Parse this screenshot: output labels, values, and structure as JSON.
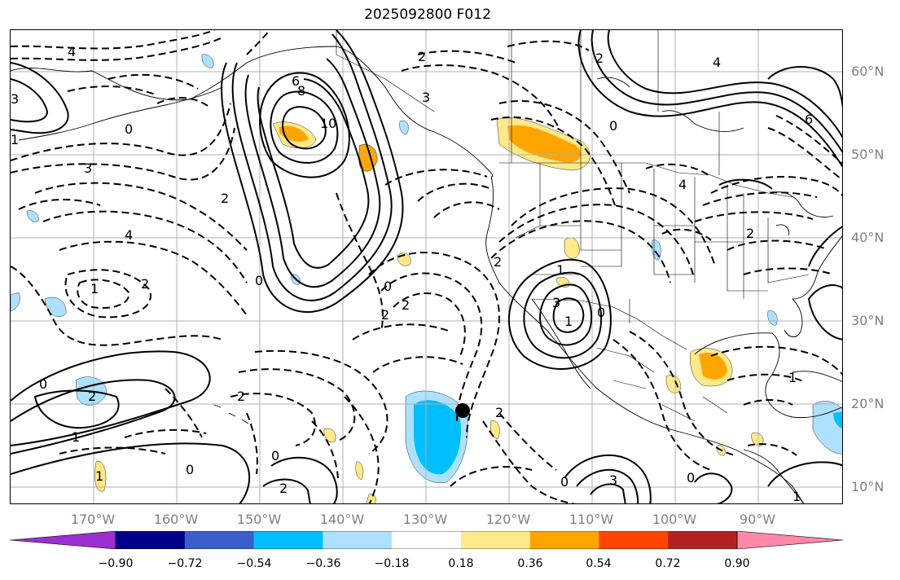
{
  "title": "2025092800 F012",
  "lat_labels": [
    "60°N",
    "50°N",
    "40°N",
    "30°N",
    "20°N",
    "10°N"
  ],
  "lon_labels": [
    "170°W",
    "160°W",
    "150°W",
    "140°W",
    "130°W",
    "120°W",
    "110°W",
    "100°W",
    "90°W"
  ],
  "colorbar": {
    "tick_labels": [
      "−0.90",
      "−0.72",
      "−0.54",
      "−0.36",
      "−0.18",
      "0.18",
      "0.36",
      "0.54",
      "0.72",
      "0.90"
    ],
    "colors": [
      "#9b30d0",
      "#00008b",
      "#3a5fcd",
      "#00bfff",
      "#ade1ff",
      "#ffffff",
      "#ffe98a",
      "#ffa500",
      "#ff4500",
      "#b22222",
      "#ff88aa"
    ]
  },
  "contour_labels": [
    "4",
    "3",
    "0",
    "6",
    "8",
    "10",
    "2",
    "3",
    "0",
    "4",
    "2",
    "3",
    "1",
    "2",
    "4",
    "0",
    "2",
    "2",
    "0",
    "1",
    "2",
    "2",
    "3",
    "1",
    "0",
    "1",
    "0",
    "2",
    "1",
    "1",
    "2",
    "0",
    "2",
    "0",
    "2",
    "0",
    "3",
    "6",
    "4",
    "2",
    "1",
    "0",
    "1"
  ]
}
